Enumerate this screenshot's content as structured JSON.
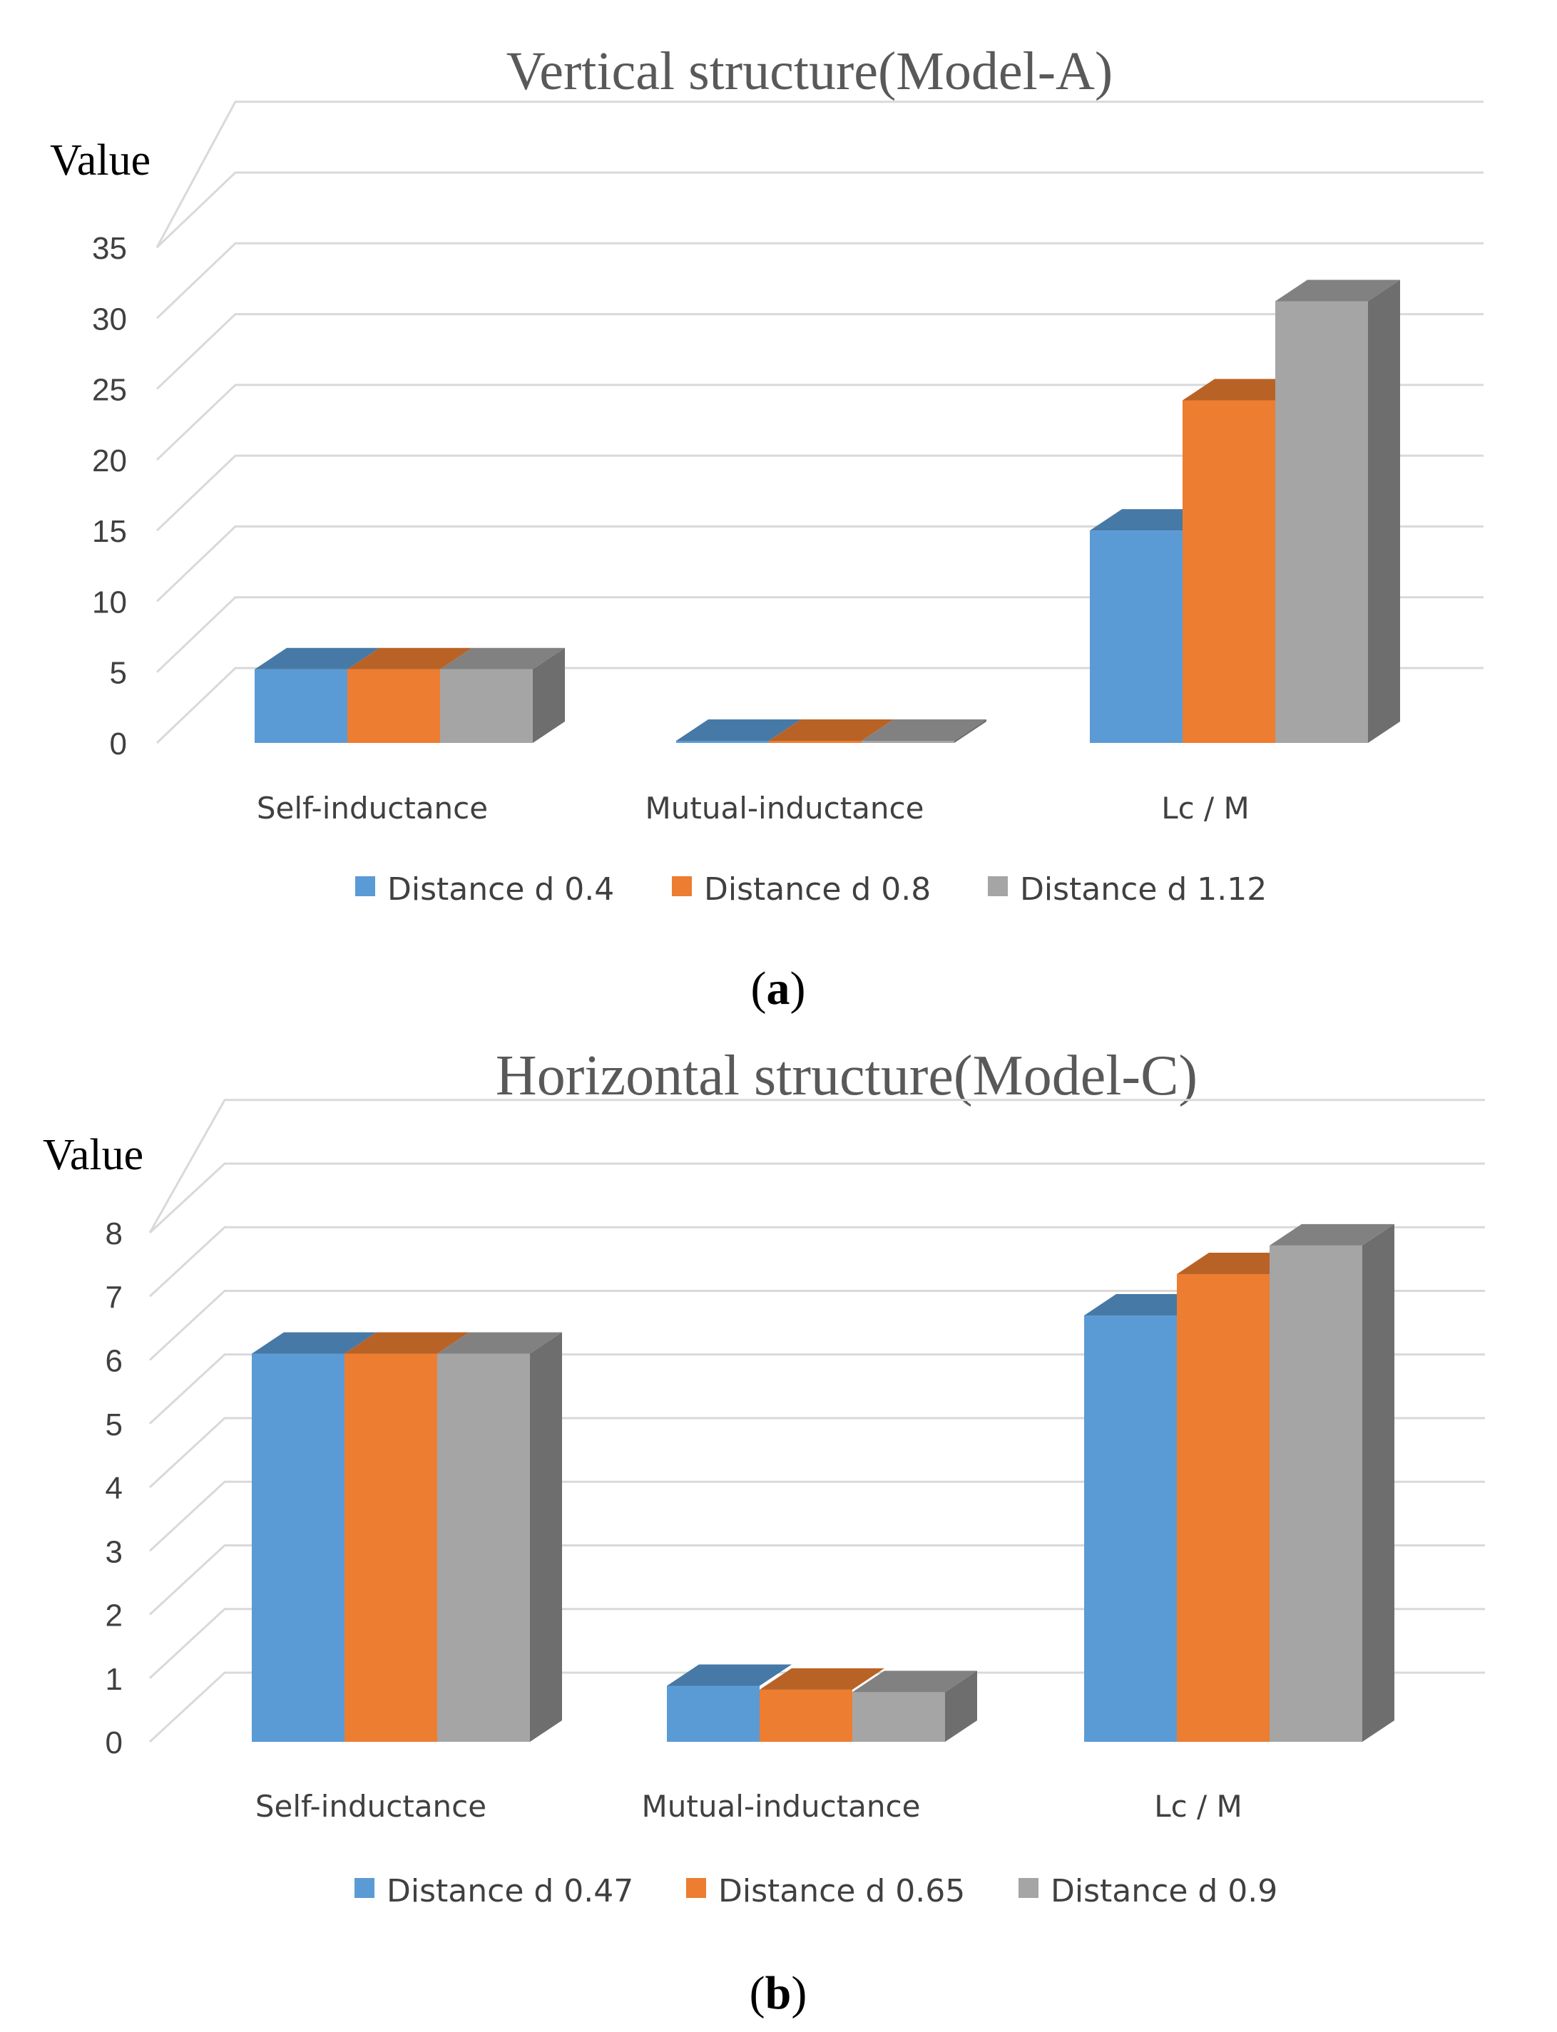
{
  "chart_data": [
    {
      "type": "bar",
      "title": "Vertical structure(Model-A)",
      "ylabel": "Value",
      "xlabel": "",
      "ylim": [
        0,
        35
      ],
      "yticks": [
        0,
        5,
        10,
        15,
        20,
        25,
        30,
        35
      ],
      "categories": [
        "Self-inductance",
        "Mutual-inductance",
        "Lc / M"
      ],
      "series": [
        {
          "name": "Distance d 0.4",
          "color": "#5B9BD5",
          "values": [
            5.2,
            0.15,
            15.0
          ]
        },
        {
          "name": "Distance d 0.8",
          "color": "#ED7D31",
          "values": [
            5.2,
            0.1,
            24.2
          ]
        },
        {
          "name": "Distance d 1.12",
          "color": "#A5A5A5",
          "values": [
            5.2,
            0.08,
            31.2
          ]
        }
      ],
      "style": "3d-clustered-column",
      "grid": true,
      "legend": "bottom",
      "caption": "a"
    },
    {
      "type": "bar",
      "title": "Horizontal structure(Model-C)",
      "ylabel": "Value",
      "xlabel": "",
      "ylim": [
        0,
        8
      ],
      "yticks": [
        0,
        1,
        2,
        3,
        4,
        5,
        6,
        7,
        8
      ],
      "categories": [
        "Self-inductance",
        "Mutual-inductance",
        "Lc / M"
      ],
      "series": [
        {
          "name": "Distance d 0.47",
          "color": "#5B9BD5",
          "values": [
            6.1,
            0.88,
            6.7
          ]
        },
        {
          "name": "Distance d 0.65",
          "color": "#ED7D31",
          "values": [
            6.1,
            0.82,
            7.35
          ]
        },
        {
          "name": "Distance d 0.9",
          "color": "#A5A5A5",
          "values": [
            6.1,
            0.78,
            7.8
          ]
        }
      ],
      "style": "3d-clustered-column",
      "grid": true,
      "legend": "bottom",
      "caption": "b"
    }
  ]
}
